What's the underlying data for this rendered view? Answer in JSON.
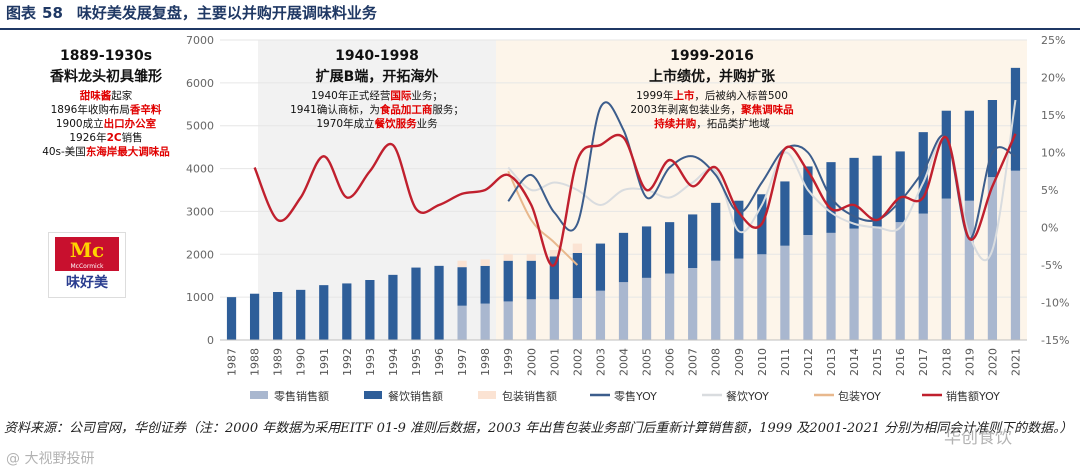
{
  "figure": {
    "label": "图表",
    "number": "58",
    "title": "味好美发展复盘，主要以并购开展调味料业务"
  },
  "logo": {
    "brand_en": "McCormick",
    "brand_mark": "Mc",
    "brand_cn": "味好美"
  },
  "phases": [
    {
      "title": "1889-1930s",
      "subtitle": "香料龙头初具雏形",
      "lines": [
        [
          {
            "t": "甜味酱",
            "h": true
          },
          {
            "t": "起家"
          }
        ],
        [
          {
            "t": "1896年收购布局"
          },
          {
            "t": "香辛料",
            "h": true
          }
        ],
        [
          {
            "t": "1900成立"
          },
          {
            "t": "出口办公室",
            "h": true
          }
        ],
        [
          {
            "t": "1926年"
          },
          {
            "t": "2C",
            "h": true
          },
          {
            "t": "销售"
          }
        ],
        [
          {
            "t": "40s-美国"
          },
          {
            "t": "东海岸最大调味品",
            "h": true
          }
        ]
      ]
    },
    {
      "title": "1940-1998",
      "subtitle": "扩展B端，开拓海外",
      "lines": [
        [
          {
            "t": "1940年正式经营"
          },
          {
            "t": "国际",
            "h": true
          },
          {
            "t": "业务；"
          }
        ],
        [
          {
            "t": "1941确认商标，为"
          },
          {
            "t": "食品加工商",
            "h": true
          },
          {
            "t": "服务；"
          }
        ],
        [
          {
            "t": "1970年成立"
          },
          {
            "t": "餐饮服务",
            "h": true
          },
          {
            "t": "业务"
          }
        ]
      ]
    },
    {
      "title": "1999-2016",
      "subtitle": "上市绩优，并购扩张",
      "lines": [
        [
          {
            "t": "1999年"
          },
          {
            "t": "上市",
            "h": true
          },
          {
            "t": "，后被纳入标普500"
          }
        ],
        [
          {
            "t": "2003年剥离包装业务，"
          },
          {
            "t": "聚焦调味品",
            "h": true
          }
        ],
        [
          {
            "t": "持续并购",
            "h": true
          },
          {
            "t": "，拓品类扩地域"
          }
        ]
      ]
    }
  ],
  "chart_data": {
    "type": "bar+line",
    "categories": [
      "1987",
      "1988",
      "1989",
      "1990",
      "1991",
      "1992",
      "1993",
      "1994",
      "1995",
      "1996",
      "1997",
      "1998",
      "1999",
      "2000",
      "2001",
      "2002",
      "2003",
      "2004",
      "2005",
      "2006",
      "2007",
      "2008",
      "2009",
      "2010",
      "2011",
      "2012",
      "2013",
      "2014",
      "2015",
      "2016",
      "2017",
      "2018",
      "2019",
      "2020",
      "2021"
    ],
    "left_axis": {
      "min": 0,
      "max": 7000,
      "step": 1000,
      "ticks": [
        "0",
        "1000",
        "2000",
        "3000",
        "4000",
        "5000",
        "6000",
        "7000"
      ]
    },
    "right_axis": {
      "min": -15,
      "max": 25,
      "step": 5,
      "ticks": [
        "-15%",
        "-10%",
        "-5%",
        "0%",
        "5%",
        "10%",
        "15%",
        "20%",
        "25%"
      ]
    },
    "bar_series": [
      {
        "name": "零售销售额",
        "color": "#a9b7cf",
        "values": [
          null,
          null,
          null,
          null,
          null,
          null,
          null,
          null,
          null,
          null,
          800,
          850,
          900,
          950,
          950,
          980,
          1150,
          1350,
          1450,
          1550,
          1680,
          1850,
          1900,
          2000,
          2200,
          2450,
          2500,
          2600,
          2650,
          2750,
          2950,
          3300,
          3250,
          3800,
          3950
        ]
      },
      {
        "name": "餐饮销售额",
        "color": "#2e5e99",
        "values": [
          1000,
          1080,
          1120,
          1170,
          1280,
          1320,
          1400,
          1520,
          1690,
          1730,
          900,
          880,
          950,
          900,
          1000,
          1050,
          1100,
          1150,
          1200,
          1200,
          1250,
          1350,
          1350,
          1400,
          1500,
          1600,
          1650,
          1650,
          1650,
          1650,
          1900,
          2050,
          2100,
          1800,
          2400
        ]
      },
      {
        "name": "包装销售额",
        "color": "#fbe3d3",
        "values": [
          null,
          null,
          null,
          null,
          null,
          null,
          null,
          null,
          null,
          null,
          150,
          150,
          150,
          150,
          150,
          220,
          null,
          null,
          null,
          null,
          null,
          null,
          null,
          null,
          null,
          null,
          null,
          null,
          null,
          null,
          null,
          null,
          null,
          null,
          null
        ]
      }
    ],
    "line_series": [
      {
        "name": "零售YOY",
        "color": "#3c5d8c",
        "values": [
          null,
          null,
          null,
          null,
          null,
          null,
          null,
          null,
          null,
          null,
          null,
          null,
          3.5,
          7,
          2,
          0.5,
          16,
          13,
          4,
          8,
          9.5,
          7,
          2,
          6,
          10.5,
          10,
          4,
          1.5,
          1,
          3.5,
          7.5,
          12,
          -1.5,
          10,
          9.5
        ]
      },
      {
        "name": "餐饮YOY",
        "color": "#d9dcdf",
        "values": [
          null,
          null,
          null,
          null,
          null,
          null,
          null,
          null,
          null,
          null,
          null,
          null,
          8,
          5,
          6,
          5,
          3,
          5,
          5,
          4,
          6,
          7.5,
          -0.5,
          3,
          10,
          5,
          2,
          0.5,
          0,
          0,
          6,
          12,
          -1,
          -3,
          17
        ]
      },
      {
        "name": "包装YOY",
        "color": "#e8b88d",
        "values": [
          null,
          null,
          null,
          null,
          null,
          null,
          null,
          null,
          null,
          null,
          null,
          null,
          7.5,
          1,
          -2,
          -5,
          null,
          null,
          null,
          null,
          null,
          null,
          null,
          null,
          null,
          null,
          null,
          null,
          null,
          null,
          null,
          null,
          null,
          null,
          null
        ]
      },
      {
        "name": "销售额YOY",
        "color": "#c0202e",
        "values": [
          null,
          8,
          1,
          4,
          9.5,
          4,
          7.5,
          11,
          2.5,
          3,
          4.5,
          5,
          7,
          3,
          -5,
          9,
          11,
          12,
          5,
          9,
          5.5,
          8,
          2,
          0.5,
          10.5,
          7.5,
          2.5,
          3,
          1,
          4,
          4,
          12,
          -1.5,
          5.5,
          12.5
        ]
      }
    ],
    "legend": [
      "零售销售额",
      "餐饮销售额",
      "包装销售额",
      "零售YOY",
      "餐饮YOY",
      "包装YOY",
      "销售额YOY"
    ]
  },
  "colors": {
    "highlight": "#e00000",
    "title_blue": "#1f3864"
  },
  "source_note": "资料来源：公司官网，华创证券（注：2000 年数据为采用EITF 01-9 准则后数据，2003 年出售包装业务部门后重新计算销售额，1999 及2001-2021 分别为相同会计准则下的数据。）",
  "watermarks": {
    "left": "@ 大视野投研",
    "right": "华创食饮"
  }
}
